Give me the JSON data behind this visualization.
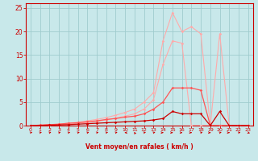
{
  "bg_color": "#c8e8ea",
  "grid_color": "#a0ccce",
  "xlabel": "Vent moyen/en rafales ( km/h )",
  "xlim": [
    -0.5,
    23.5
  ],
  "ylim": [
    0,
    26
  ],
  "yticks": [
    0,
    5,
    10,
    15,
    20,
    25
  ],
  "xticks": [
    0,
    1,
    2,
    3,
    4,
    5,
    6,
    7,
    8,
    9,
    10,
    11,
    12,
    13,
    14,
    15,
    16,
    17,
    18,
    19,
    20,
    21,
    22,
    23
  ],
  "series": [
    {
      "x": [
        0,
        1,
        2,
        3,
        4,
        5,
        6,
        7,
        8,
        9,
        10,
        11,
        12,
        13,
        14,
        15,
        16,
        17,
        18,
        19,
        20,
        21,
        22,
        23
      ],
      "y": [
        0,
        0.1,
        0.2,
        0.3,
        0.5,
        0.7,
        1.0,
        1.3,
        1.7,
        2.2,
        2.8,
        3.5,
        5,
        7,
        18,
        24,
        20,
        21,
        19.5,
        0,
        0,
        0,
        0,
        0
      ],
      "color": "#ffaaaa",
      "lw": 0.8,
      "marker": "D",
      "ms": 1.8
    },
    {
      "x": [
        0,
        1,
        2,
        3,
        4,
        5,
        6,
        7,
        8,
        9,
        10,
        11,
        12,
        13,
        14,
        15,
        16,
        17,
        18,
        19,
        20,
        21,
        22,
        23
      ],
      "y": [
        0,
        0.05,
        0.1,
        0.2,
        0.3,
        0.5,
        0.7,
        0.9,
        1.2,
        1.6,
        2.0,
        2.5,
        3.5,
        5.5,
        13,
        18,
        17.5,
        0,
        0,
        0,
        19.5,
        0,
        0,
        0
      ],
      "color": "#ffaaaa",
      "lw": 0.8,
      "marker": "D",
      "ms": 1.8
    },
    {
      "x": [
        0,
        1,
        2,
        3,
        4,
        5,
        6,
        7,
        8,
        9,
        10,
        11,
        12,
        13,
        14,
        15,
        16,
        17,
        18,
        19,
        20,
        21,
        22,
        23
      ],
      "y": [
        0,
        0.1,
        0.2,
        0.3,
        0.5,
        0.6,
        0.8,
        1.0,
        1.3,
        1.5,
        1.8,
        2.0,
        2.5,
        3.5,
        5,
        8,
        8,
        8,
        7.5,
        0,
        0,
        0,
        0,
        0
      ],
      "color": "#ff5555",
      "lw": 0.9,
      "marker": "D",
      "ms": 1.8
    },
    {
      "x": [
        0,
        1,
        2,
        3,
        4,
        5,
        6,
        7,
        8,
        9,
        10,
        11,
        12,
        13,
        14,
        15,
        16,
        17,
        18,
        19,
        20,
        21,
        22,
        23
      ],
      "y": [
        0,
        0.05,
        0.1,
        0.15,
        0.2,
        0.3,
        0.4,
        0.5,
        0.6,
        0.7,
        0.8,
        0.9,
        1.0,
        1.2,
        1.5,
        3,
        2.5,
        2.5,
        2.5,
        0,
        3,
        0,
        0,
        0
      ],
      "color": "#cc0000",
      "lw": 0.9,
      "marker": "D",
      "ms": 1.8
    }
  ],
  "font_color": "#cc0000",
  "spine_color": "#cc0000",
  "arrow_angles": [
    45,
    45,
    45,
    45,
    45,
    45,
    45,
    45,
    45,
    45,
    180,
    100,
    45,
    45,
    0,
    0,
    0,
    0,
    45,
    0,
    45,
    0,
    45,
    315
  ]
}
